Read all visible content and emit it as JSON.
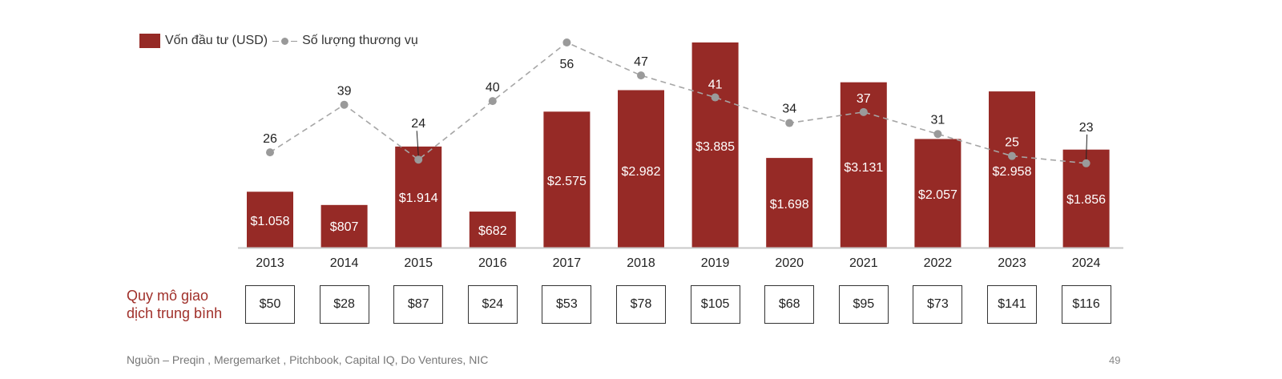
{
  "legend": {
    "bar_label": "Vốn đầu tư (USD)",
    "line_label": "Số lượng thương vụ"
  },
  "colors": {
    "bar": "#962a26",
    "line": "#a6a6a6",
    "accent_text": "#a0302a"
  },
  "chart_data": {
    "type": "bar",
    "title": "",
    "xlabel": "",
    "ylabel": "",
    "categories": [
      "2013",
      "2014",
      "2015",
      "2016",
      "2017",
      "2018",
      "2019",
      "2020",
      "2021",
      "2022",
      "2023",
      "2024"
    ],
    "series": [
      {
        "name": "Vốn đầu tư (USD)",
        "type": "bar",
        "values": [
          1058,
          807,
          1914,
          682,
          2575,
          2982,
          3885,
          1698,
          3131,
          2057,
          2958,
          1856
        ],
        "labels": [
          "$1.058",
          "$807",
          "$1.914",
          "$682",
          "$2.575",
          "$2.982",
          "$3.885",
          "$1.698",
          "$3.131",
          "$2.057",
          "$2.958",
          "$1.856"
        ]
      },
      {
        "name": "Số lượng thương vụ",
        "type": "line",
        "style": "dashed",
        "values": [
          26,
          39,
          24,
          40,
          56,
          47,
          41,
          34,
          37,
          31,
          25,
          23
        ],
        "labels": [
          "26",
          "39",
          "24",
          "40",
          "56",
          "47",
          "41",
          "34",
          "37",
          "31",
          "25",
          "23"
        ]
      }
    ],
    "ylim": [
      0,
      3885
    ],
    "grid": false,
    "legend_position": "top-left"
  },
  "avg_deal": {
    "label_line1": "Quy mô giao",
    "label_line2": "dịch trung bình",
    "values": [
      "$50",
      "$28",
      "$87",
      "$24",
      "$53",
      "$78",
      "$105",
      "$68",
      "$95",
      "$73",
      "$141",
      "$116"
    ]
  },
  "footer": {
    "source": "Nguồn – Preqin , Mergemarket , Pitchbook, Capital IQ, Do Ventures, NIC",
    "page_number": "49"
  }
}
